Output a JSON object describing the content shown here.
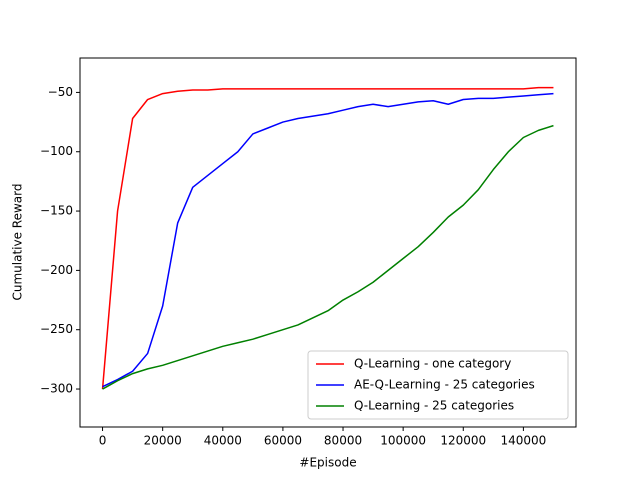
{
  "chart_data": {
    "type": "line",
    "x_label": "#Episode",
    "y_label": "Cumulative Reward",
    "x": [
      0,
      5000,
      10000,
      15000,
      20000,
      25000,
      30000,
      35000,
      40000,
      45000,
      50000,
      55000,
      60000,
      65000,
      70000,
      75000,
      80000,
      85000,
      90000,
      95000,
      100000,
      105000,
      110000,
      115000,
      120000,
      125000,
      130000,
      135000,
      140000,
      145000,
      150000
    ],
    "series": [
      {
        "name": "Q-Learning - one category",
        "color": "#ff0000",
        "values": [
          -300,
          -150,
          -72,
          -56,
          -51,
          -49,
          -48,
          -48,
          -47,
          -47,
          -47,
          -47,
          -47,
          -47,
          -47,
          -47,
          -47,
          -47,
          -47,
          -47,
          -47,
          -47,
          -47,
          -47,
          -47,
          -47,
          -47,
          -47,
          -47,
          -46,
          -46
        ]
      },
      {
        "name": "AE-Q-Learning - 25 categories",
        "color": "#0000ff",
        "values": [
          -298,
          -292,
          -285,
          -270,
          -230,
          -160,
          -130,
          -120,
          -110,
          -100,
          -85,
          -80,
          -75,
          -72,
          -70,
          -68,
          -65,
          -62,
          -60,
          -62,
          -60,
          -58,
          -57,
          -60,
          -56,
          -55,
          -55,
          -54,
          -53,
          -52,
          -51
        ]
      },
      {
        "name": "Q-Learning - 25 categories",
        "color": "#008000",
        "values": [
          -300,
          -293,
          -287,
          -283,
          -280,
          -276,
          -272,
          -268,
          -264,
          -261,
          -258,
          -254,
          -250,
          -246,
          -240,
          -234,
          -225,
          -218,
          -210,
          -200,
          -190,
          -180,
          -168,
          -155,
          -145,
          -132,
          -115,
          -100,
          -88,
          -82,
          -78
        ]
      }
    ],
    "xlim": [
      -7500,
      157500
    ],
    "ylim": [
      -332,
      -21
    ],
    "xticks": [
      0,
      20000,
      40000,
      60000,
      80000,
      100000,
      120000,
      140000
    ],
    "yticks": [
      {
        "value": -300,
        "label": "−300"
      },
      {
        "value": -250,
        "label": "−250"
      },
      {
        "value": -200,
        "label": "−200"
      },
      {
        "value": -150,
        "label": "−150"
      },
      {
        "value": -100,
        "label": "−100"
      },
      {
        "value": -50,
        "label": "−50"
      }
    ],
    "legend": "lower right"
  }
}
